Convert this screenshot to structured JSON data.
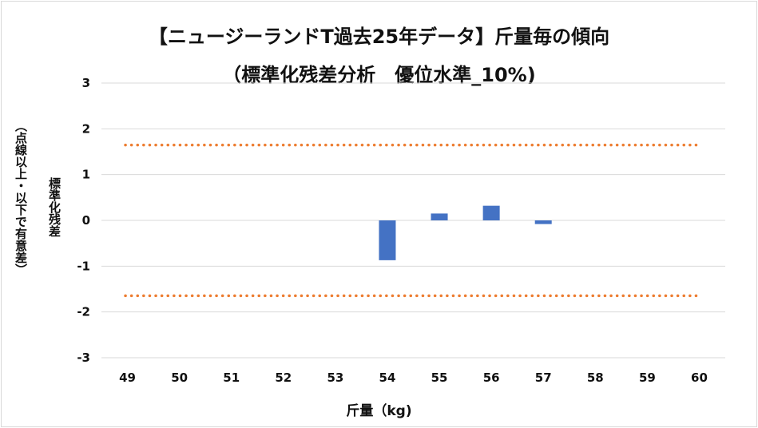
{
  "colors": {
    "bar": "#4472c4",
    "threshold": "#ed7d31",
    "grid": "#d9d9d9"
  },
  "chart_data": {
    "type": "bar",
    "title": "【ニュージーランドT過去25年データ】斤量毎の傾向",
    "subtitle": "（標準化残差分析　優位水準_10%)",
    "xlabel": "斤量（kg)",
    "ylabel": "標準化残差",
    "ylabel_note": "（点線以上・以下で有意差）",
    "categories": [
      "49",
      "50",
      "51",
      "52",
      "53",
      "54",
      "55",
      "56",
      "57",
      "58",
      "59",
      "60"
    ],
    "values": [
      null,
      null,
      null,
      null,
      null,
      -0.87,
      0.15,
      0.32,
      -0.08,
      null,
      null,
      null
    ],
    "ylim": [
      -3,
      3
    ],
    "yticks": [
      "3",
      "2",
      "1",
      "0",
      "-1",
      "-2",
      "-3"
    ],
    "thresholds": [
      1.645,
      -1.645
    ],
    "grid": true,
    "legend": "none"
  }
}
